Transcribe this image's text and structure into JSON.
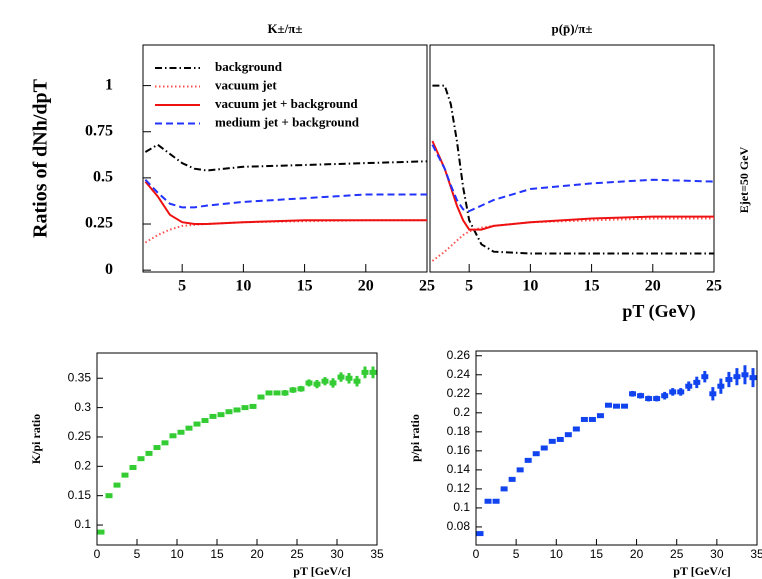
{
  "chart_data": [
    {
      "type": "line",
      "title": "K±/π±",
      "ylabel": "Ratios of dNh/dpT",
      "x": [
        2,
        3,
        4,
        5,
        6,
        7,
        10,
        15,
        20,
        25
      ],
      "xlim": [
        1.8,
        25
      ],
      "xticks": [
        5,
        10,
        15,
        20,
        25
      ],
      "ylim": [
        -0.01,
        1.22
      ],
      "yticks": [
        0,
        0.25,
        0.5,
        0.75,
        1
      ],
      "legend": "top-right",
      "series": [
        {
          "name": "background",
          "color": "#000000",
          "dash": "dashdot",
          "values": [
            0.64,
            0.68,
            0.63,
            0.58,
            0.55,
            0.54,
            0.56,
            0.57,
            0.58,
            0.59
          ]
        },
        {
          "name": "vacuum jet",
          "color": "#ff5050",
          "dash": "dot",
          "values": [
            0.15,
            0.19,
            0.22,
            0.24,
            0.245,
            0.25,
            0.26,
            0.265,
            0.27,
            0.27
          ]
        },
        {
          "name": "vacuum jet + background",
          "color": "#ee1111",
          "dash": "solid",
          "values": [
            0.48,
            0.4,
            0.3,
            0.26,
            0.25,
            0.25,
            0.26,
            0.27,
            0.27,
            0.27
          ]
        },
        {
          "name": "medium jet + background",
          "color": "#2233ff",
          "dash": "dash",
          "values": [
            0.49,
            0.42,
            0.36,
            0.34,
            0.34,
            0.35,
            0.37,
            0.39,
            0.41,
            0.41
          ]
        }
      ]
    },
    {
      "type": "line",
      "title": "p(p̄)/π±",
      "xlabel": "pT (GeV)",
      "annotation": "Ejet=50 GeV",
      "x": [
        2,
        3,
        3.5,
        4,
        4.5,
        5,
        6,
        7,
        10,
        15,
        20,
        25
      ],
      "xlim": [
        1.8,
        25
      ],
      "xticks": [
        5,
        10,
        15,
        20,
        25
      ],
      "ylim": [
        -0.01,
        1.22
      ],
      "series": [
        {
          "color": "#000000",
          "dash": "dashdot",
          "values": [
            1.0,
            1.0,
            0.9,
            0.7,
            0.45,
            0.27,
            0.14,
            0.1,
            0.09,
            0.09,
            0.09,
            0.09
          ]
        },
        {
          "color": "#ff5050",
          "dash": "dot",
          "values": [
            0.05,
            0.1,
            0.13,
            0.16,
            0.19,
            0.21,
            0.23,
            0.24,
            0.26,
            0.27,
            0.28,
            0.28
          ]
        },
        {
          "color": "#ee1111",
          "dash": "solid",
          "values": [
            0.7,
            0.55,
            0.45,
            0.35,
            0.27,
            0.22,
            0.22,
            0.24,
            0.26,
            0.28,
            0.29,
            0.29
          ]
        },
        {
          "color": "#2233ff",
          "dash": "dash",
          "values": [
            0.68,
            0.55,
            0.46,
            0.38,
            0.33,
            0.32,
            0.35,
            0.38,
            0.44,
            0.47,
            0.49,
            0.48
          ]
        }
      ]
    },
    {
      "type": "scatter",
      "ylabel": "K/pi ratio",
      "xlabel": "pT [GeV/c]",
      "color": "#33cc33",
      "x": [
        0.5,
        1.5,
        2.5,
        3.5,
        4.5,
        5.5,
        6.5,
        7.5,
        8.5,
        9.5,
        10.5,
        11.5,
        12.5,
        13.5,
        14.5,
        15.5,
        16.5,
        17.5,
        18.5,
        19.5,
        20.5,
        21.5,
        22.5,
        23.5,
        24.5,
        25.5,
        26.5,
        27.5,
        28.5,
        29.5,
        30.5,
        31.5,
        32.5,
        33.5,
        34.5
      ],
      "values": [
        0.088,
        0.15,
        0.168,
        0.185,
        0.198,
        0.213,
        0.222,
        0.232,
        0.24,
        0.252,
        0.258,
        0.265,
        0.272,
        0.278,
        0.285,
        0.288,
        0.293,
        0.296,
        0.3,
        0.302,
        0.318,
        0.325,
        0.325,
        0.325,
        0.33,
        0.332,
        0.342,
        0.34,
        0.345,
        0.342,
        0.352,
        0.35,
        0.345,
        0.36,
        0.36
      ],
      "errors": [
        0.003,
        0.003,
        0.003,
        0.003,
        0.003,
        0.003,
        0.003,
        0.003,
        0.003,
        0.003,
        0.003,
        0.003,
        0.003,
        0.003,
        0.003,
        0.003,
        0.003,
        0.003,
        0.003,
        0.004,
        0.004,
        0.004,
        0.004,
        0.005,
        0.005,
        0.005,
        0.006,
        0.007,
        0.007,
        0.008,
        0.008,
        0.009,
        0.009,
        0.01,
        0.01
      ],
      "xlim": [
        0,
        35
      ],
      "xticks": [
        0,
        5,
        10,
        15,
        20,
        25,
        30,
        35
      ],
      "ylim": [
        0.066,
        0.393
      ],
      "yticks": [
        0.1,
        0.15,
        0.2,
        0.25,
        0.3,
        0.35
      ]
    },
    {
      "type": "scatter",
      "ylabel": "p/pi ratio",
      "xlabel": "pT [GeV/c]",
      "color": "#1144ee",
      "x": [
        0.5,
        1.5,
        2.5,
        3.5,
        4.5,
        5.5,
        6.5,
        7.5,
        8.5,
        9.5,
        10.5,
        11.5,
        12.5,
        13.5,
        14.5,
        15.5,
        16.5,
        17.5,
        18.5,
        19.5,
        20.5,
        21.5,
        22.5,
        23.5,
        24.5,
        25.5,
        26.5,
        27.5,
        28.5,
        29.5,
        30.5,
        31.5,
        32.5,
        33.5,
        34.5
      ],
      "values": [
        0.073,
        0.107,
        0.107,
        0.12,
        0.13,
        0.14,
        0.15,
        0.157,
        0.163,
        0.17,
        0.172,
        0.177,
        0.183,
        0.193,
        0.193,
        0.197,
        0.208,
        0.207,
        0.207,
        0.22,
        0.218,
        0.215,
        0.215,
        0.218,
        0.222,
        0.222,
        0.228,
        0.232,
        0.238,
        0.22,
        0.228,
        0.235,
        0.238,
        0.24,
        0.237
      ],
      "errors": [
        0.002,
        0.002,
        0.002,
        0.002,
        0.002,
        0.002,
        0.002,
        0.002,
        0.002,
        0.002,
        0.002,
        0.002,
        0.002,
        0.002,
        0.002,
        0.002,
        0.002,
        0.002,
        0.002,
        0.003,
        0.003,
        0.003,
        0.003,
        0.004,
        0.004,
        0.004,
        0.005,
        0.006,
        0.006,
        0.007,
        0.008,
        0.008,
        0.009,
        0.01,
        0.01
      ],
      "xlim": [
        0,
        35
      ],
      "xticks": [
        0,
        5,
        10,
        15,
        20,
        25,
        30,
        35
      ],
      "ylim": [
        0.061,
        0.265
      ],
      "yticks": [
        0.08,
        0.1,
        0.12,
        0.14,
        0.16,
        0.18,
        0.2,
        0.22,
        0.24,
        0.26
      ]
    }
  ]
}
